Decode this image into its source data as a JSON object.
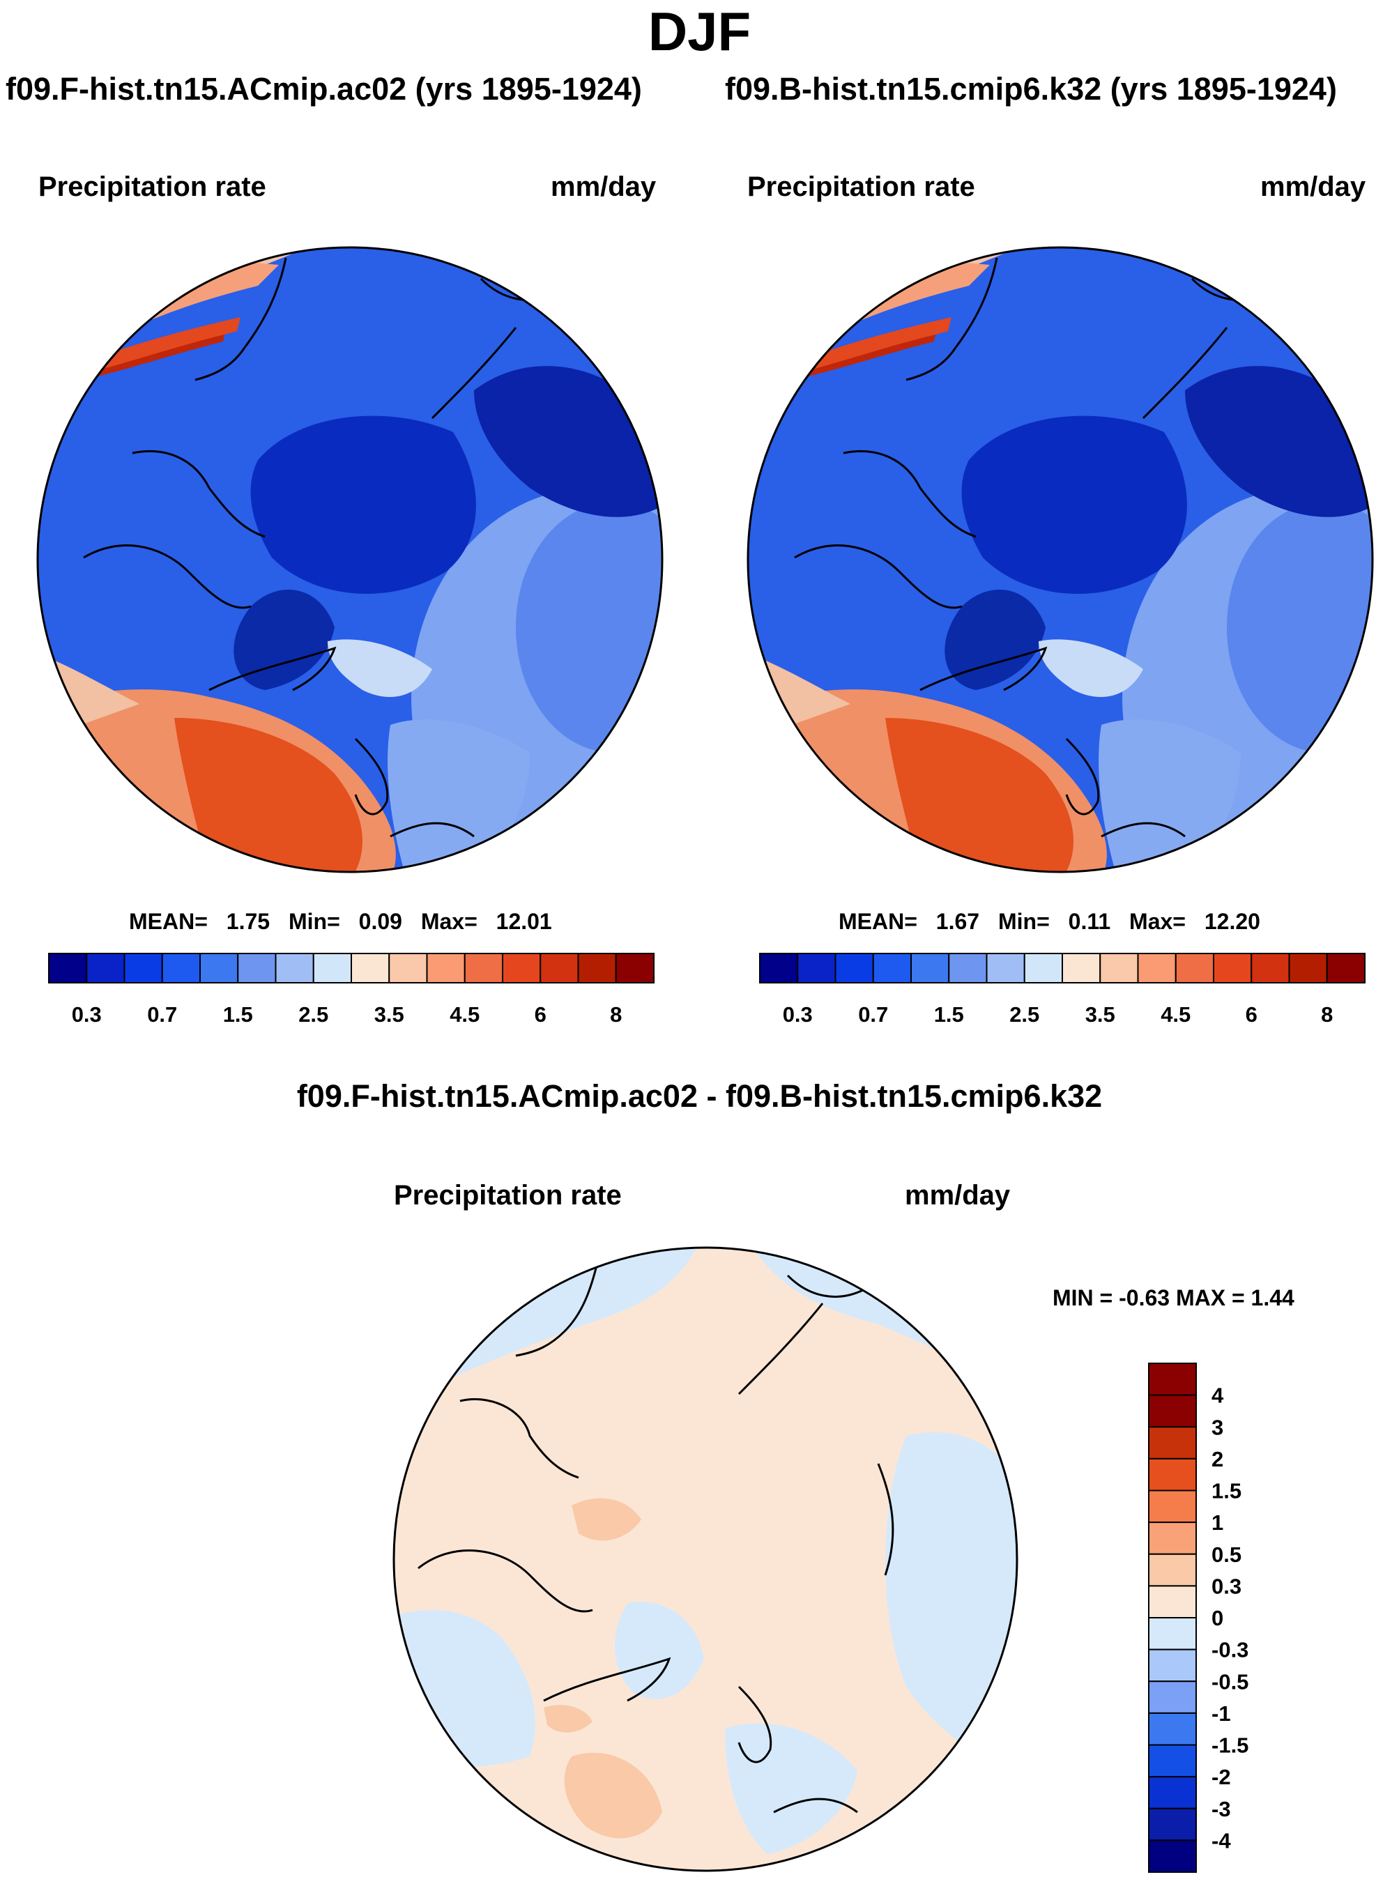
{
  "season": "DJF",
  "variable": "Precipitation rate",
  "units": "mm/day",
  "panels": [
    {
      "case": "f09.F-hist.tn15.ACmip.ac02 (yrs 1895-1924)",
      "stats": {
        "mean_label": "MEAN=",
        "mean": "1.75",
        "min_label": "Min=",
        "min": "0.09",
        "max_label": "Max=",
        "max": "12.01"
      }
    },
    {
      "case": "f09.B-hist.tn15.cmip6.k32 (yrs 1895-1924)",
      "stats": {
        "mean_label": "MEAN=",
        "mean": "1.67",
        "min_label": "Min=",
        "min": "0.11",
        "max_label": "Max=",
        "max": "12.20"
      }
    }
  ],
  "difference": {
    "title": "f09.F-hist.tn15.ACmip.ac02 - f09.B-hist.tn15.cmip6.k32",
    "minmax_text": "MIN =  -0.63 MAX =   1.44"
  },
  "abs_colorbar": {
    "colors": [
      "#00008b",
      "#0a23c8",
      "#0a3ce6",
      "#1e5af0",
      "#3c78f0",
      "#6e96f0",
      "#a0bef5",
      "#d2e6fa",
      "#fae6d2",
      "#fac8aa",
      "#fa9b73",
      "#f06e46",
      "#e6461e",
      "#d2320f",
      "#b41e00",
      "#8b0000"
    ],
    "tick_labels": [
      "0.3",
      "0.7",
      "1.5",
      "2.5",
      "3.5",
      "4.5",
      "6",
      "8"
    ]
  },
  "diff_colorbar": {
    "colors": [
      "#000080",
      "#0a1eaa",
      "#0a32d2",
      "#1450e6",
      "#3c78f0",
      "#7ba0f5",
      "#aac8fa",
      "#d6e9fa",
      "#fbe6d6",
      "#f9c9a8",
      "#f9a278",
      "#f47d4b",
      "#e6501e",
      "#c8320a",
      "#8b0000"
    ],
    "tick_labels": [
      "4",
      "3",
      "2",
      "1.5",
      "1",
      "0.5",
      "0.3",
      "0",
      "-0.3",
      "-0.5",
      "-1",
      "-1.5",
      "-2",
      "-3",
      "-4"
    ]
  }
}
